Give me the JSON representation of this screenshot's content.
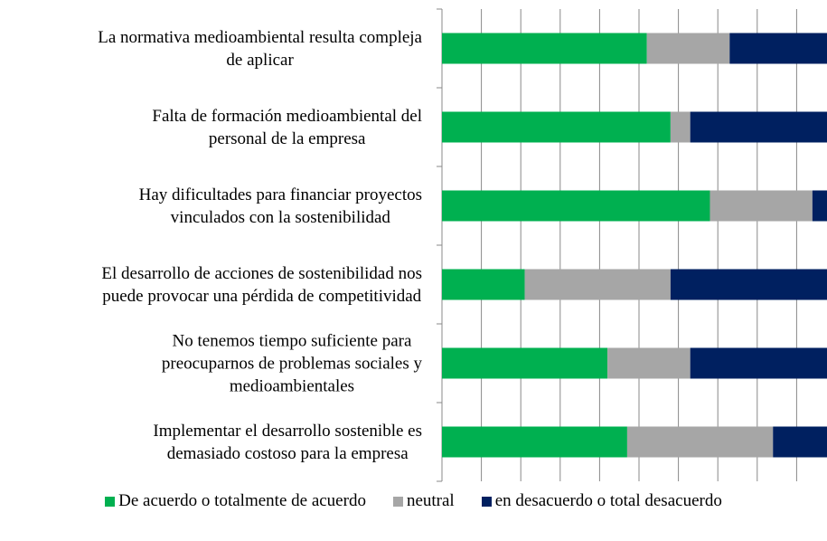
{
  "chart_data": {
    "type": "stacked_barh",
    "categories": [
      "La normativa medioambiental resulta compleja\nde aplicar",
      "Falta de formación medioambiental del\npersonal de la empresa",
      "Hay dificultades para financiar proyectos\nvinculados con la sostenibilidad",
      "El desarrollo de acciones de sostenibilidad nos\npuede provocar una pérdida de competitividad",
      "No tenemos tiempo suficiente para\npreocuparnos de problemas sociales y\nmedioambientales",
      "Implementar el desarrollo sostenible es\ndemasiado costoso para la empresa"
    ],
    "series": [
      {
        "name": "De acuerdo o totalmente de acuerdo",
        "color": "#00b050",
        "values": [
          52,
          58,
          68,
          21,
          42,
          47
        ]
      },
      {
        "name": "neutral",
        "color": "#a6a6a6",
        "values": [
          21,
          5,
          26,
          37,
          21,
          37
        ]
      },
      {
        "name": "en desacuerdo o total desacuerdo",
        "color": "#002060",
        "values": [
          27,
          37,
          6,
          42,
          37,
          16
        ]
      }
    ],
    "xlim": [
      0,
      100
    ],
    "xticks": [
      0,
      10,
      20,
      30,
      40,
      50,
      60,
      70,
      80,
      90,
      100
    ],
    "grid": true,
    "legend": "bottom"
  }
}
